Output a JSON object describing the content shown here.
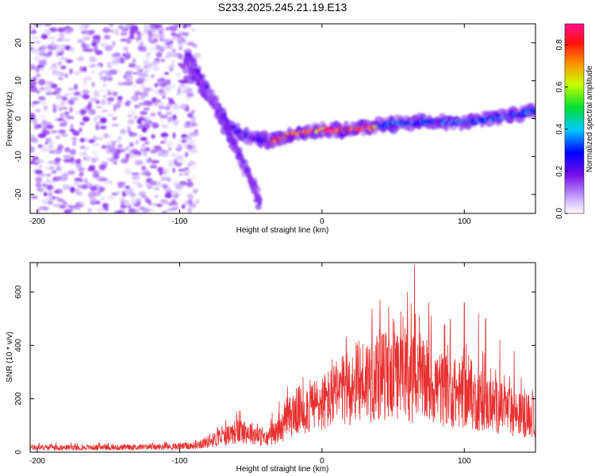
{
  "figure": {
    "title": "S233.2025.245.21.19.E13"
  },
  "chart_data": [
    {
      "type": "heatmap",
      "name": "spectrogram",
      "xlabel": "Height of straight line (km)",
      "ylabel": "Frequency (Hz)",
      "xlim": [
        -205,
        150
      ],
      "ylim": [
        -25,
        25
      ],
      "x_ticks": [
        -200,
        -100,
        0,
        100
      ],
      "y_ticks": [
        -20,
        -10,
        0,
        10,
        20
      ],
      "x_tick_labels": [
        "-200",
        "-100",
        "0",
        "100"
      ],
      "y_tick_labels": [
        "-20",
        "-10",
        "0",
        "10",
        "20"
      ],
      "colorbar": {
        "label": "Normalized spectral amplitude",
        "range": [
          0.0,
          0.9
        ],
        "ticks": [
          0.0,
          0.2,
          0.4,
          0.6,
          0.8
        ],
        "tick_labels": [
          "0.0",
          "0.2",
          "0.4",
          "0.6",
          "0.8"
        ]
      },
      "noise_region": {
        "x_range": [
          -205,
          -92
        ],
        "y_range": [
          -25,
          25
        ],
        "amplitude_range": [
          0.02,
          0.18
        ]
      },
      "ridges": [
        {
          "name": "descending-main",
          "points": [
            [
              -95,
              17
            ],
            [
              -80,
              7
            ],
            [
              -65,
              -2
            ],
            [
              -50,
              -5
            ],
            [
              -35,
              -6
            ]
          ],
          "amplitude": 0.25
        },
        {
          "name": "descending-secondary",
          "points": [
            [
              -95,
              15
            ],
            [
              -75,
              3
            ],
            [
              -60,
              -8
            ],
            [
              -48,
              -18
            ],
            [
              -43,
              -23
            ]
          ],
          "amplitude": 0.15
        },
        {
          "name": "flat-core",
          "points": [
            [
              -35,
              -6
            ],
            [
              -20,
              -4
            ],
            [
              0,
              -3
            ],
            [
              20,
              -3
            ],
            [
              40,
              -2
            ]
          ],
          "amplitude": 0.85
        },
        {
          "name": "flat-right",
          "points": [
            [
              40,
              -2
            ],
            [
              60,
              -1
            ],
            [
              80,
              -1
            ],
            [
              100,
              -1
            ],
            [
              120,
              0
            ],
            [
              150,
              2
            ]
          ],
          "amplitude": 0.35
        }
      ]
    },
    {
      "type": "line",
      "name": "snr",
      "xlabel": "Height of straight line (km)",
      "ylabel": "SNR (10 * v/v)",
      "xlim": [
        -205,
        150
      ],
      "ylim": [
        0,
        710
      ],
      "x_ticks": [
        -200,
        -100,
        0,
        100
      ],
      "y_ticks": [
        0,
        200,
        400,
        600
      ],
      "x_tick_labels": [
        "-200",
        "-100",
        "0",
        "100"
      ],
      "y_tick_labels": [
        "0",
        "200",
        "400",
        "600"
      ],
      "series": [
        {
          "name": "SNR",
          "color": "#e83030",
          "envelope": [
            [
              -205,
              20
            ],
            [
              -150,
              20
            ],
            [
              -110,
              22
            ],
            [
              -90,
              28
            ],
            [
              -80,
              45
            ],
            [
              -70,
              65
            ],
            [
              -60,
              90
            ],
            [
              -50,
              85
            ],
            [
              -40,
              55
            ],
            [
              -30,
              90
            ],
            [
              -20,
              170
            ],
            [
              -10,
              190
            ],
            [
              0,
              210
            ],
            [
              10,
              240
            ],
            [
              20,
              280
            ],
            [
              30,
              310
            ],
            [
              40,
              330
            ],
            [
              50,
              320
            ],
            [
              60,
              320
            ],
            [
              70,
              300
            ],
            [
              80,
              280
            ],
            [
              90,
              260
            ],
            [
              100,
              240
            ],
            [
              110,
              220
            ],
            [
              120,
              200
            ],
            [
              130,
              180
            ],
            [
              140,
              160
            ],
            [
              150,
              150
            ]
          ],
          "peaks": [
            [
              -60,
              150
            ],
            [
              -35,
              150
            ],
            [
              -30,
              190
            ],
            [
              5,
              260
            ],
            [
              25,
              400
            ],
            [
              35,
              460
            ],
            [
              45,
              440
            ],
            [
              50,
              500
            ],
            [
              60,
              600
            ],
            [
              65,
              700
            ],
            [
              75,
              560
            ],
            [
              90,
              500
            ],
            [
              100,
              560
            ],
            [
              110,
              520
            ],
            [
              115,
              500
            ],
            [
              125,
              420
            ],
            [
              135,
              380
            ],
            [
              140,
              280
            ]
          ]
        }
      ]
    }
  ]
}
